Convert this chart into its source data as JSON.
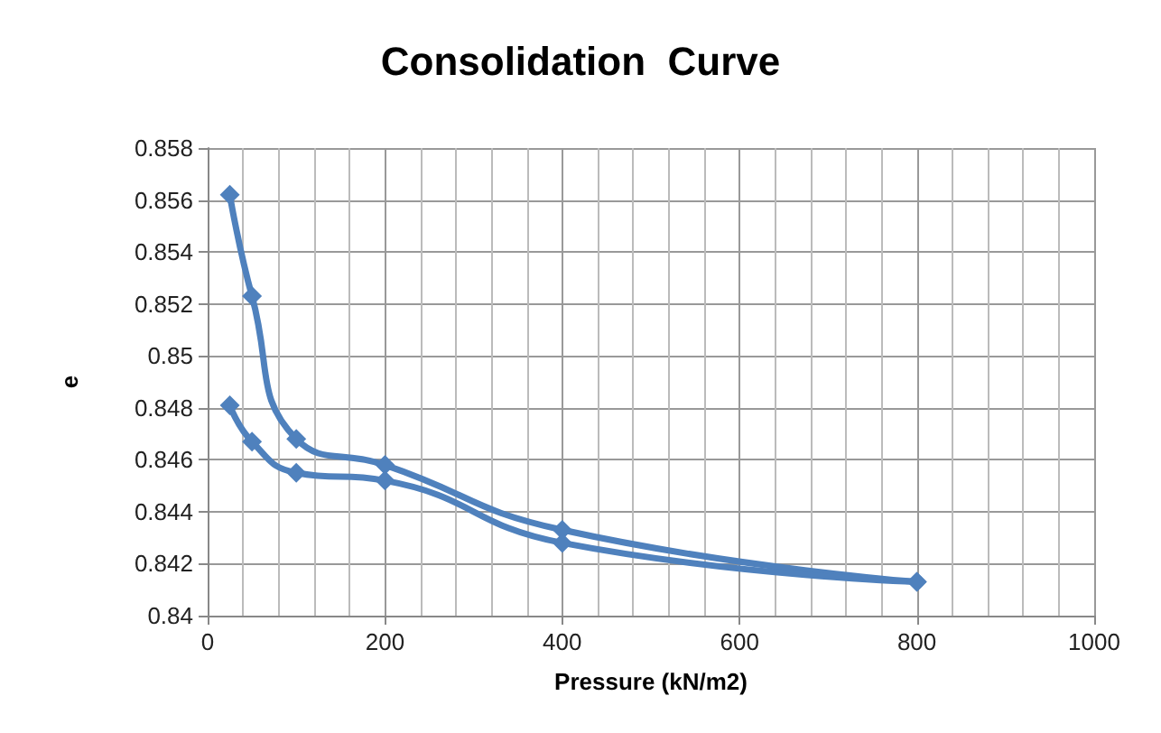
{
  "chart_data": {
    "type": "line",
    "title": "Consolidation  Curve",
    "xlabel": "Pressure (kN/m2)",
    "ylabel": "e",
    "x": [
      25,
      50,
      100,
      200,
      400,
      800
    ],
    "series": [
      {
        "color": "#4f81bd",
        "values": [
          0.8562,
          0.8523,
          0.8468,
          0.8458,
          0.8433,
          0.8413
        ]
      },
      {
        "color": "#4f81bd",
        "x": [
          800,
          400,
          200,
          100,
          50,
          25
        ],
        "values": [
          0.8413,
          0.8428,
          0.8452,
          0.8455,
          0.8467,
          0.8481
        ]
      }
    ],
    "xlim": [
      0,
      1000
    ],
    "xticks": [
      0,
      200,
      400,
      600,
      800,
      1000
    ],
    "ylim": [
      0.84,
      0.858
    ],
    "yticks": [
      0.84,
      0.842,
      0.844,
      0.846,
      0.848,
      0.85,
      0.852,
      0.854,
      0.856,
      0.858
    ],
    "grid": true,
    "marker": "diamond",
    "line_style": "solid"
  }
}
